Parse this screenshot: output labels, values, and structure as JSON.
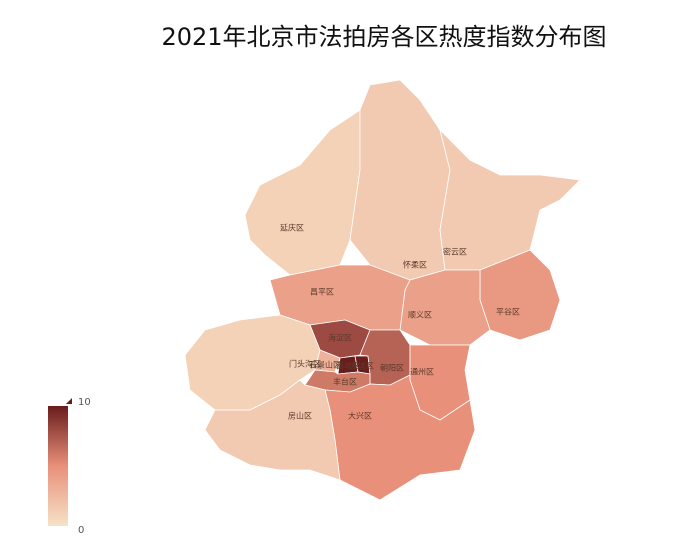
{
  "chart_data": {
    "type": "map",
    "title": "2021年北京市法拍房各区热度指数分布图",
    "regions": [
      {
        "name": "延庆区",
        "value": 1
      },
      {
        "name": "怀柔区",
        "value": 1.5
      },
      {
        "name": "密云区",
        "value": 1.5
      },
      {
        "name": "平谷区",
        "value": 4.5
      },
      {
        "name": "顺义区",
        "value": 4
      },
      {
        "name": "昌平区",
        "value": 4
      },
      {
        "name": "海淀区",
        "value": 8
      },
      {
        "name": "门头沟区",
        "value": 1
      },
      {
        "name": "石景山区",
        "value": 3
      },
      {
        "name": "西城区",
        "value": 10
      },
      {
        "name": "东城区",
        "value": 10
      },
      {
        "name": "朝阳区",
        "value": 7
      },
      {
        "name": "丰台区",
        "value": 6
      },
      {
        "name": "通州区",
        "value": 5
      },
      {
        "name": "大兴区",
        "value": 5
      },
      {
        "name": "房山区",
        "value": 1.5
      }
    ],
    "visual_map": {
      "range": [
        0,
        10
      ],
      "colors": [
        "#f6e2c8",
        "#e8907a",
        "#6a1c1c"
      ]
    }
  }
}
